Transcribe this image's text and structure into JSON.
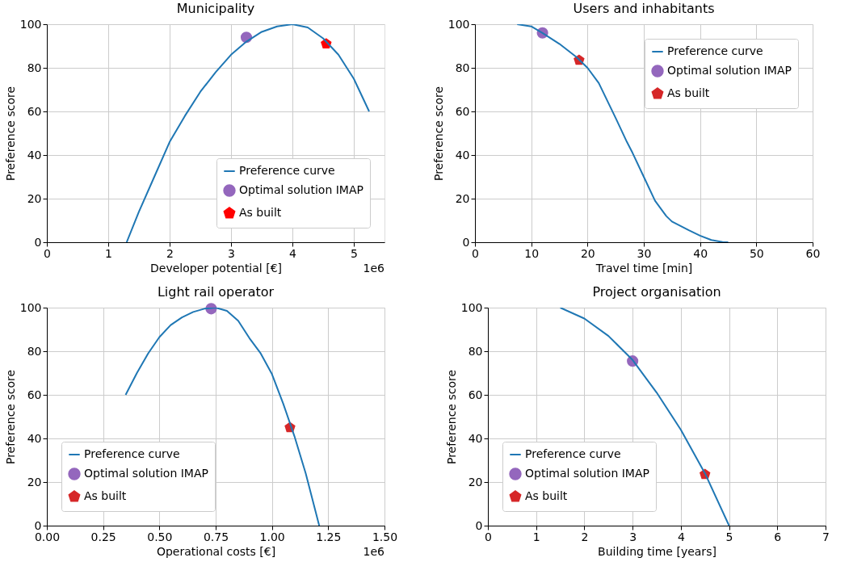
{
  "chart_data": [
    {
      "type": "line",
      "title": "Municipality",
      "xlabel": "Developer potential [€]",
      "ylabel": "Preference score",
      "annotations": [
        "1e6"
      ],
      "xlim": [
        0,
        5.5
      ],
      "xticks": [
        0,
        1,
        2,
        3,
        4,
        5
      ],
      "ylim": [
        0,
        100
      ],
      "yticks": [
        0,
        20,
        40,
        60,
        80,
        100
      ],
      "grid": true,
      "legend": "bottom right",
      "series": [
        {
          "name": "Preference curve",
          "color": "#1f77b4",
          "x": [
            1.3,
            1.5,
            1.75,
            2,
            2.25,
            2.5,
            2.75,
            3,
            3.25,
            3.5,
            3.75,
            4,
            4.25,
            4.5,
            4.75,
            5,
            5.25
          ],
          "values": [
            0,
            14,
            30,
            46,
            58,
            69,
            78,
            86,
            92,
            96.5,
            99,
            100,
            98.5,
            93.5,
            86,
            75,
            60
          ]
        },
        {
          "name": "Optimal solution IMAP",
          "type": "scatter",
          "marker": "circle",
          "color": "#9467bd",
          "x": [
            3.25
          ],
          "values": [
            94
          ]
        },
        {
          "name": "As built",
          "type": "scatter",
          "color": "#ff0000",
          "x": [
            4.55
          ],
          "values": [
            91
          ]
        }
      ]
    },
    {
      "type": "line",
      "title": "Users and inhabitants",
      "xlabel": "Travel time [min]",
      "ylabel": "Preference score",
      "xlim": [
        0,
        60
      ],
      "xticks": [
        0,
        10,
        20,
        30,
        40,
        50,
        60
      ],
      "ylim": [
        0,
        100
      ],
      "yticks": [
        0,
        20,
        40,
        60,
        80,
        100
      ],
      "grid": true,
      "legend": "top right",
      "series": [
        {
          "name": "Preference curve",
          "color": "#1f77b4",
          "x": [
            7.5,
            10,
            12,
            15,
            18,
            20,
            22,
            25,
            27,
            28,
            30,
            32,
            34,
            35,
            38,
            40,
            42,
            44,
            45
          ],
          "values": [
            100,
            99,
            96,
            91,
            85,
            80,
            73,
            57,
            46,
            41,
            30,
            19,
            12,
            9.5,
            5.5,
            3,
            1,
            0.1,
            0
          ]
        },
        {
          "name": "Optimal solution IMAP",
          "type": "scatter",
          "marker": "circle",
          "color": "#9467bd",
          "x": [
            12
          ],
          "values": [
            96
          ]
        },
        {
          "name": "As built",
          "type": "scatter",
          "color": "#d62728",
          "x": [
            18.5
          ],
          "values": [
            83.5
          ]
        }
      ]
    },
    {
      "type": "line",
      "title": "Light rail operator",
      "xlabel": "Operational costs [€]",
      "ylabel": "Preference score",
      "annotations": [
        "1e6"
      ],
      "xlim": [
        0,
        1.5
      ],
      "xticks": [
        {
          "value": 0,
          "label": "0.00"
        },
        0.25,
        {
          "value": 0.5,
          "label": "0.50"
        },
        0.75,
        {
          "value": 1,
          "label": "1.00"
        },
        1.25,
        {
          "value": 1.5,
          "label": "1.50"
        }
      ],
      "ylim": [
        0,
        100
      ],
      "yticks": [
        0,
        20,
        40,
        60,
        80,
        100
      ],
      "grid": true,
      "legend": "bottom left",
      "series": [
        {
          "name": "Preference curve",
          "color": "#1f77b4",
          "x": [
            0.35,
            0.4,
            0.45,
            0.5,
            0.55,
            0.6,
            0.65,
            0.7,
            0.75,
            0.8,
            0.85,
            0.9,
            0.95,
            1.0,
            1.05,
            1.1,
            1.15,
            1.21
          ],
          "values": [
            60,
            70,
            79,
            86.5,
            92,
            95.5,
            98,
            99.5,
            100,
            98.5,
            94,
            86,
            79,
            69.5,
            56,
            41,
            24,
            0
          ]
        },
        {
          "name": "Optimal solution IMAP",
          "type": "scatter",
          "marker": "circle",
          "color": "#9467bd",
          "x": [
            0.73
          ],
          "values": [
            99.5
          ]
        },
        {
          "name": "As built",
          "type": "scatter",
          "color": "#d62728",
          "x": [
            1.08
          ],
          "values": [
            45
          ]
        }
      ]
    },
    {
      "type": "line",
      "title": "Project organisation",
      "xlabel": "Building time [years]",
      "ylabel": "Preference score",
      "xlim": [
        0,
        7
      ],
      "xticks": [
        0,
        1,
        2,
        3,
        4,
        5,
        6,
        7
      ],
      "ylim": [
        0,
        100
      ],
      "yticks": [
        0,
        20,
        40,
        60,
        80,
        100
      ],
      "grid": true,
      "legend": "bottom left",
      "series": [
        {
          "name": "Preference curve",
          "color": "#1f77b4",
          "x": [
            1.5,
            2,
            2.5,
            3,
            3.5,
            4,
            4.5,
            5
          ],
          "values": [
            100,
            95,
            87,
            76,
            61,
            44,
            24,
            0
          ]
        },
        {
          "name": "Optimal solution IMAP",
          "type": "scatter",
          "marker": "circle",
          "color": "#9467bd",
          "x": [
            3
          ],
          "values": [
            75.5
          ]
        },
        {
          "name": "As built",
          "type": "scatter",
          "color": "#d62728",
          "x": [
            4.5
          ],
          "values": [
            23.5
          ]
        }
      ]
    }
  ]
}
